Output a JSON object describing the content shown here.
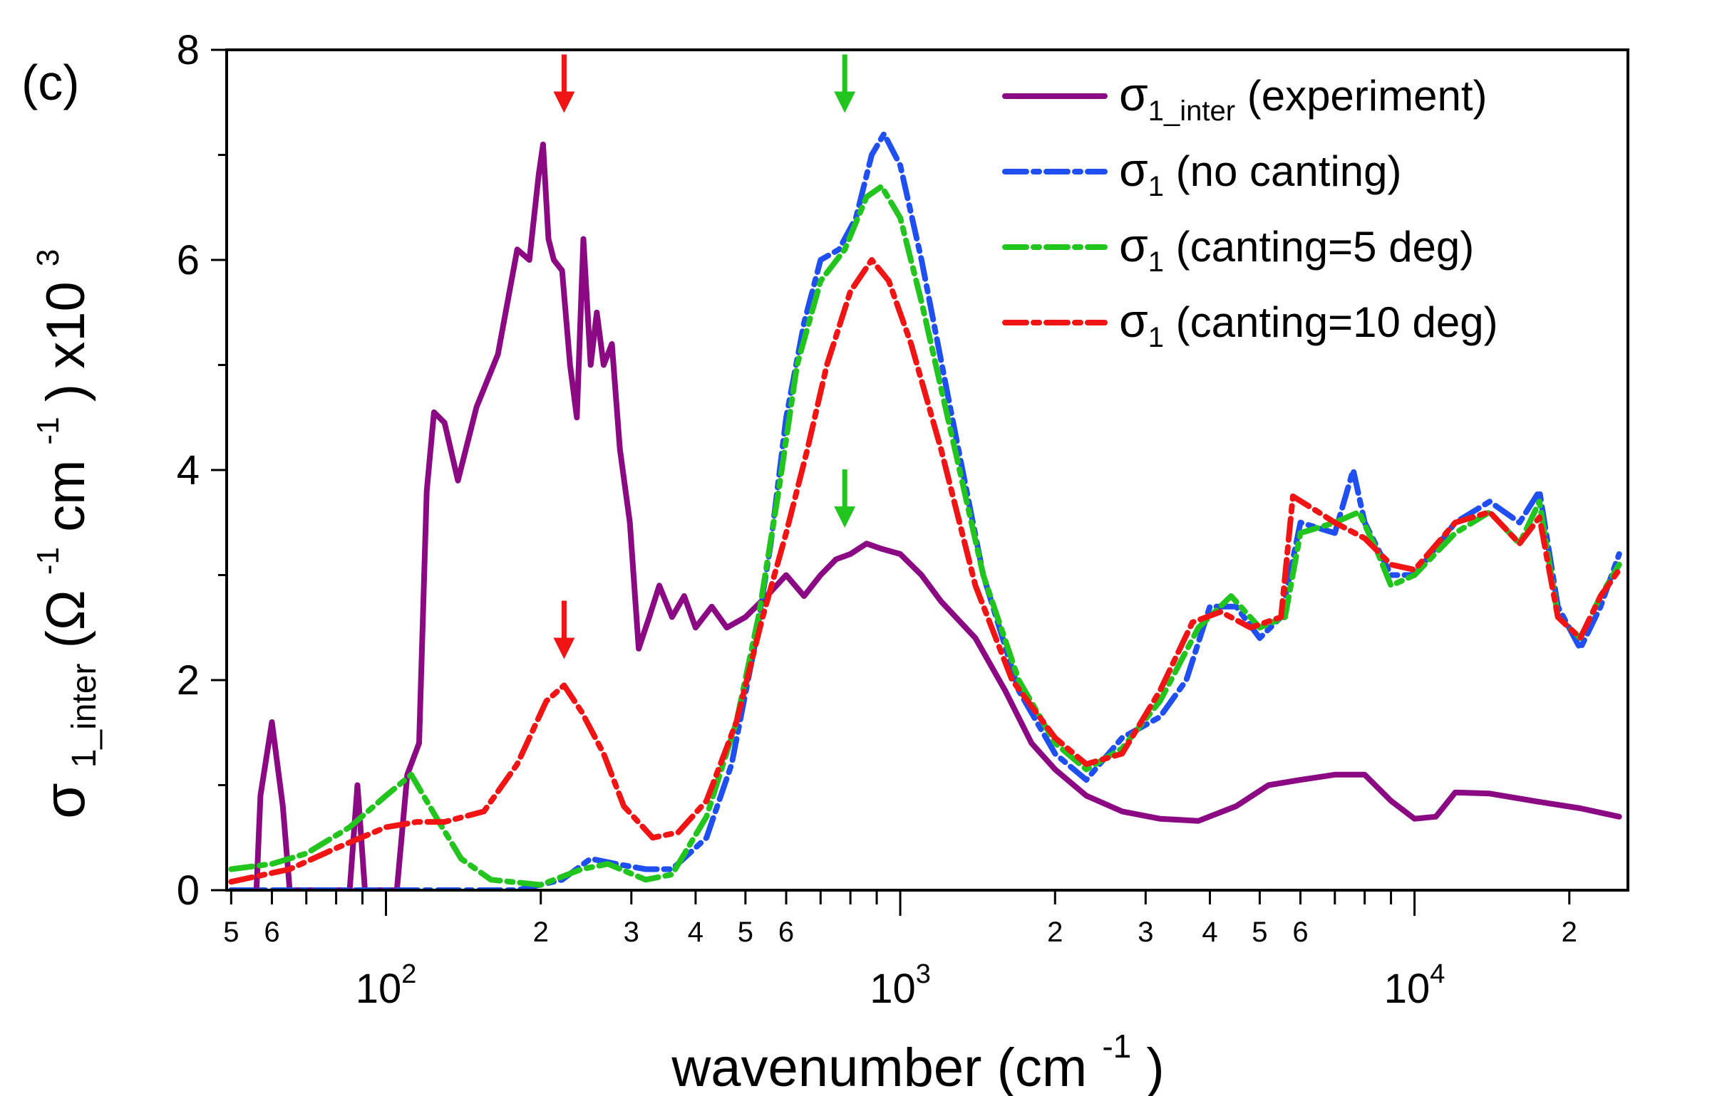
{
  "panel_label": "(c)",
  "colors": {
    "experiment": "#8B0A84",
    "no_canting": "#1F4FF0",
    "canting5": "#22C51E",
    "canting10": "#F01414",
    "axis": "#000000"
  },
  "chart_data": {
    "type": "line",
    "x_scale": "log",
    "xlim": [
      49,
      26000
    ],
    "ylim": [
      0,
      8
    ],
    "xlabel": "wavenumber (cm",
    "xlabel_exp": "-1",
    "xlabel_close": ")",
    "ylabel_parts": [
      "σ",
      "1_inter",
      " (Ω",
      "-1",
      "cm",
      "-1",
      ") x10",
      "3"
    ],
    "y_ticks": [
      "0",
      "2",
      "4",
      "6",
      "8"
    ],
    "x_minor_tick_labels": [
      "5",
      "6",
      "2",
      "3",
      "4",
      "5",
      "6",
      "2",
      "3",
      "4",
      "5",
      "6",
      "2"
    ],
    "x_minor_tick_values": [
      50,
      60,
      200,
      300,
      400,
      500,
      600,
      2000,
      3000,
      4000,
      5000,
      6000,
      20000
    ],
    "x_major_tick_values": [
      100,
      1000,
      10000
    ],
    "x_major_tick_bases": [
      "10",
      "10",
      "10"
    ],
    "x_major_tick_exps": [
      "2",
      "3",
      "4"
    ],
    "legend": [
      {
        "symbol": "σ",
        "sub": "1_inter",
        "text": " (experiment)"
      },
      {
        "symbol": "σ",
        "sub": "1",
        "text": " (no canting)"
      },
      {
        "symbol": "σ",
        "sub": "1",
        "text": " (canting=5 deg)"
      },
      {
        "symbol": "σ",
        "sub": "1",
        "text": " (canting=10 deg)"
      }
    ],
    "annotations": [
      {
        "type": "arrow",
        "x": 222,
        "y_tip": 7.4,
        "color": "canting10"
      },
      {
        "type": "arrow",
        "x": 780,
        "y_tip": 7.4,
        "color": "canting5"
      },
      {
        "type": "arrow",
        "x": 222,
        "y_tip": 2.2,
        "color": "canting10"
      },
      {
        "type": "arrow",
        "x": 780,
        "y_tip": 3.45,
        "color": "canting5"
      }
    ],
    "series": [
      {
        "name": "σ1_inter (experiment)",
        "color_key": "experiment",
        "dash": "solid",
        "points": [
          [
            50,
            0
          ],
          [
            56,
            0
          ],
          [
            57,
            0.9
          ],
          [
            60,
            1.6
          ],
          [
            63,
            0.8
          ],
          [
            65,
            0
          ],
          [
            85,
            0
          ],
          [
            88,
            1.0
          ],
          [
            91,
            0
          ],
          [
            105,
            0
          ],
          [
            110,
            1.1
          ],
          [
            116,
            1.4
          ],
          [
            120,
            3.8
          ],
          [
            124,
            4.55
          ],
          [
            130,
            4.45
          ],
          [
            138,
            3.9
          ],
          [
            150,
            4.6
          ],
          [
            165,
            5.1
          ],
          [
            180,
            6.1
          ],
          [
            190,
            6.0
          ],
          [
            198,
            6.8
          ],
          [
            202,
            7.1
          ],
          [
            207,
            6.2
          ],
          [
            212,
            6.0
          ],
          [
            220,
            5.9
          ],
          [
            228,
            5.0
          ],
          [
            235,
            4.5
          ],
          [
            242,
            6.2
          ],
          [
            250,
            5.0
          ],
          [
            257,
            5.5
          ],
          [
            265,
            5.0
          ],
          [
            275,
            5.2
          ],
          [
            285,
            4.2
          ],
          [
            298,
            3.5
          ],
          [
            310,
            2.3
          ],
          [
            325,
            2.6
          ],
          [
            340,
            2.9
          ],
          [
            360,
            2.6
          ],
          [
            380,
            2.8
          ],
          [
            400,
            2.5
          ],
          [
            430,
            2.7
          ],
          [
            460,
            2.5
          ],
          [
            500,
            2.6
          ],
          [
            550,
            2.8
          ],
          [
            600,
            3.0
          ],
          [
            650,
            2.8
          ],
          [
            700,
            3.0
          ],
          [
            750,
            3.15
          ],
          [
            800,
            3.2
          ],
          [
            860,
            3.3
          ],
          [
            920,
            3.25
          ],
          [
            1000,
            3.2
          ],
          [
            1100,
            3.0
          ],
          [
            1200,
            2.75
          ],
          [
            1400,
            2.4
          ],
          [
            1600,
            1.9
          ],
          [
            1800,
            1.4
          ],
          [
            2000,
            1.15
          ],
          [
            2300,
            0.9
          ],
          [
            2700,
            0.75
          ],
          [
            3200,
            0.68
          ],
          [
            3800,
            0.66
          ],
          [
            4500,
            0.8
          ],
          [
            5200,
            1.0
          ],
          [
            6000,
            1.05
          ],
          [
            7000,
            1.1
          ],
          [
            8000,
            1.1
          ],
          [
            9000,
            0.85
          ],
          [
            10000,
            0.68
          ],
          [
            11000,
            0.7
          ],
          [
            12000,
            0.93
          ],
          [
            14000,
            0.92
          ],
          [
            17000,
            0.85
          ],
          [
            21000,
            0.78
          ],
          [
            25000,
            0.7
          ]
        ]
      },
      {
        "name": "σ1 (no canting)",
        "color_key": "no_canting",
        "dash": "dashed",
        "points": [
          [
            50,
            0
          ],
          [
            120,
            0
          ],
          [
            180,
            0
          ],
          [
            220,
            0.1
          ],
          [
            250,
            0.3
          ],
          [
            280,
            0.25
          ],
          [
            320,
            0.2
          ],
          [
            360,
            0.2
          ],
          [
            420,
            0.5
          ],
          [
            470,
            1.2
          ],
          [
            520,
            2.3
          ],
          [
            560,
            3.3
          ],
          [
            600,
            4.5
          ],
          [
            650,
            5.4
          ],
          [
            700,
            6.0
          ],
          [
            760,
            6.1
          ],
          [
            820,
            6.4
          ],
          [
            880,
            7.0
          ],
          [
            930,
            7.2
          ],
          [
            1000,
            6.9
          ],
          [
            1100,
            6.0
          ],
          [
            1250,
            4.6
          ],
          [
            1450,
            3.0
          ],
          [
            1700,
            1.9
          ],
          [
            2000,
            1.3
          ],
          [
            2300,
            1.05
          ],
          [
            2700,
            1.45
          ],
          [
            3200,
            1.65
          ],
          [
            3600,
            2.0
          ],
          [
            4000,
            2.7
          ],
          [
            4500,
            2.7
          ],
          [
            5000,
            2.4
          ],
          [
            5500,
            2.6
          ],
          [
            6000,
            3.5
          ],
          [
            7000,
            3.4
          ],
          [
            7600,
            4.0
          ],
          [
            8000,
            3.5
          ],
          [
            9000,
            3.0
          ],
          [
            10000,
            3.0
          ],
          [
            12000,
            3.5
          ],
          [
            14000,
            3.7
          ],
          [
            16000,
            3.5
          ],
          [
            17500,
            3.8
          ],
          [
            19000,
            2.7
          ],
          [
            21000,
            2.3
          ],
          [
            23000,
            2.7
          ],
          [
            25000,
            3.2
          ]
        ]
      },
      {
        "name": "σ1 (canting=5 deg)",
        "color_key": "canting5",
        "dash": "dashed",
        "points": [
          [
            50,
            0.2
          ],
          [
            60,
            0.25
          ],
          [
            70,
            0.35
          ],
          [
            85,
            0.6
          ],
          [
            100,
            0.9
          ],
          [
            112,
            1.1
          ],
          [
            125,
            0.7
          ],
          [
            140,
            0.3
          ],
          [
            160,
            0.1
          ],
          [
            200,
            0.05
          ],
          [
            240,
            0.2
          ],
          [
            270,
            0.25
          ],
          [
            320,
            0.1
          ],
          [
            360,
            0.15
          ],
          [
            420,
            0.7
          ],
          [
            480,
            1.6
          ],
          [
            530,
            2.6
          ],
          [
            580,
            3.8
          ],
          [
            630,
            5.0
          ],
          [
            700,
            5.8
          ],
          [
            780,
            6.1
          ],
          [
            860,
            6.6
          ],
          [
            920,
            6.7
          ],
          [
            1000,
            6.4
          ],
          [
            1100,
            5.6
          ],
          [
            1250,
            4.4
          ],
          [
            1450,
            3.0
          ],
          [
            1700,
            2.0
          ],
          [
            2000,
            1.4
          ],
          [
            2300,
            1.15
          ],
          [
            2700,
            1.35
          ],
          [
            3200,
            1.8
          ],
          [
            3800,
            2.5
          ],
          [
            4400,
            2.8
          ],
          [
            5000,
            2.5
          ],
          [
            5600,
            2.6
          ],
          [
            6000,
            3.4
          ],
          [
            7000,
            3.5
          ],
          [
            7800,
            3.6
          ],
          [
            8500,
            3.2
          ],
          [
            9000,
            2.9
          ],
          [
            10000,
            3.0
          ],
          [
            12000,
            3.4
          ],
          [
            14000,
            3.6
          ],
          [
            16000,
            3.3
          ],
          [
            17500,
            3.7
          ],
          [
            19000,
            2.6
          ],
          [
            21000,
            2.4
          ],
          [
            23000,
            2.8
          ],
          [
            25000,
            3.1
          ]
        ]
      },
      {
        "name": "σ1 (canting=10 deg)",
        "color_key": "canting10",
        "dash": "dashed",
        "points": [
          [
            50,
            0.08
          ],
          [
            65,
            0.2
          ],
          [
            80,
            0.4
          ],
          [
            100,
            0.6
          ],
          [
            115,
            0.65
          ],
          [
            130,
            0.65
          ],
          [
            155,
            0.75
          ],
          [
            180,
            1.2
          ],
          [
            205,
            1.8
          ],
          [
            222,
            1.95
          ],
          [
            240,
            1.7
          ],
          [
            265,
            1.3
          ],
          [
            290,
            0.8
          ],
          [
            330,
            0.5
          ],
          [
            370,
            0.55
          ],
          [
            420,
            0.85
          ],
          [
            480,
            1.6
          ],
          [
            540,
            2.6
          ],
          [
            600,
            3.4
          ],
          [
            660,
            4.2
          ],
          [
            720,
            5.0
          ],
          [
            800,
            5.7
          ],
          [
            880,
            6.0
          ],
          [
            950,
            5.8
          ],
          [
            1050,
            5.2
          ],
          [
            1200,
            4.2
          ],
          [
            1400,
            2.9
          ],
          [
            1650,
            2.0
          ],
          [
            2000,
            1.45
          ],
          [
            2300,
            1.2
          ],
          [
            2700,
            1.3
          ],
          [
            3200,
            1.9
          ],
          [
            3700,
            2.55
          ],
          [
            4200,
            2.65
          ],
          [
            4800,
            2.5
          ],
          [
            5500,
            2.6
          ],
          [
            5800,
            3.75
          ],
          [
            6500,
            3.6
          ],
          [
            7000,
            3.5
          ],
          [
            8000,
            3.35
          ],
          [
            9000,
            3.1
          ],
          [
            10000,
            3.05
          ],
          [
            12000,
            3.5
          ],
          [
            14000,
            3.6
          ],
          [
            16000,
            3.3
          ],
          [
            17500,
            3.55
          ],
          [
            19000,
            2.6
          ],
          [
            21000,
            2.4
          ],
          [
            23000,
            2.8
          ],
          [
            25000,
            3.05
          ]
        ]
      }
    ]
  }
}
